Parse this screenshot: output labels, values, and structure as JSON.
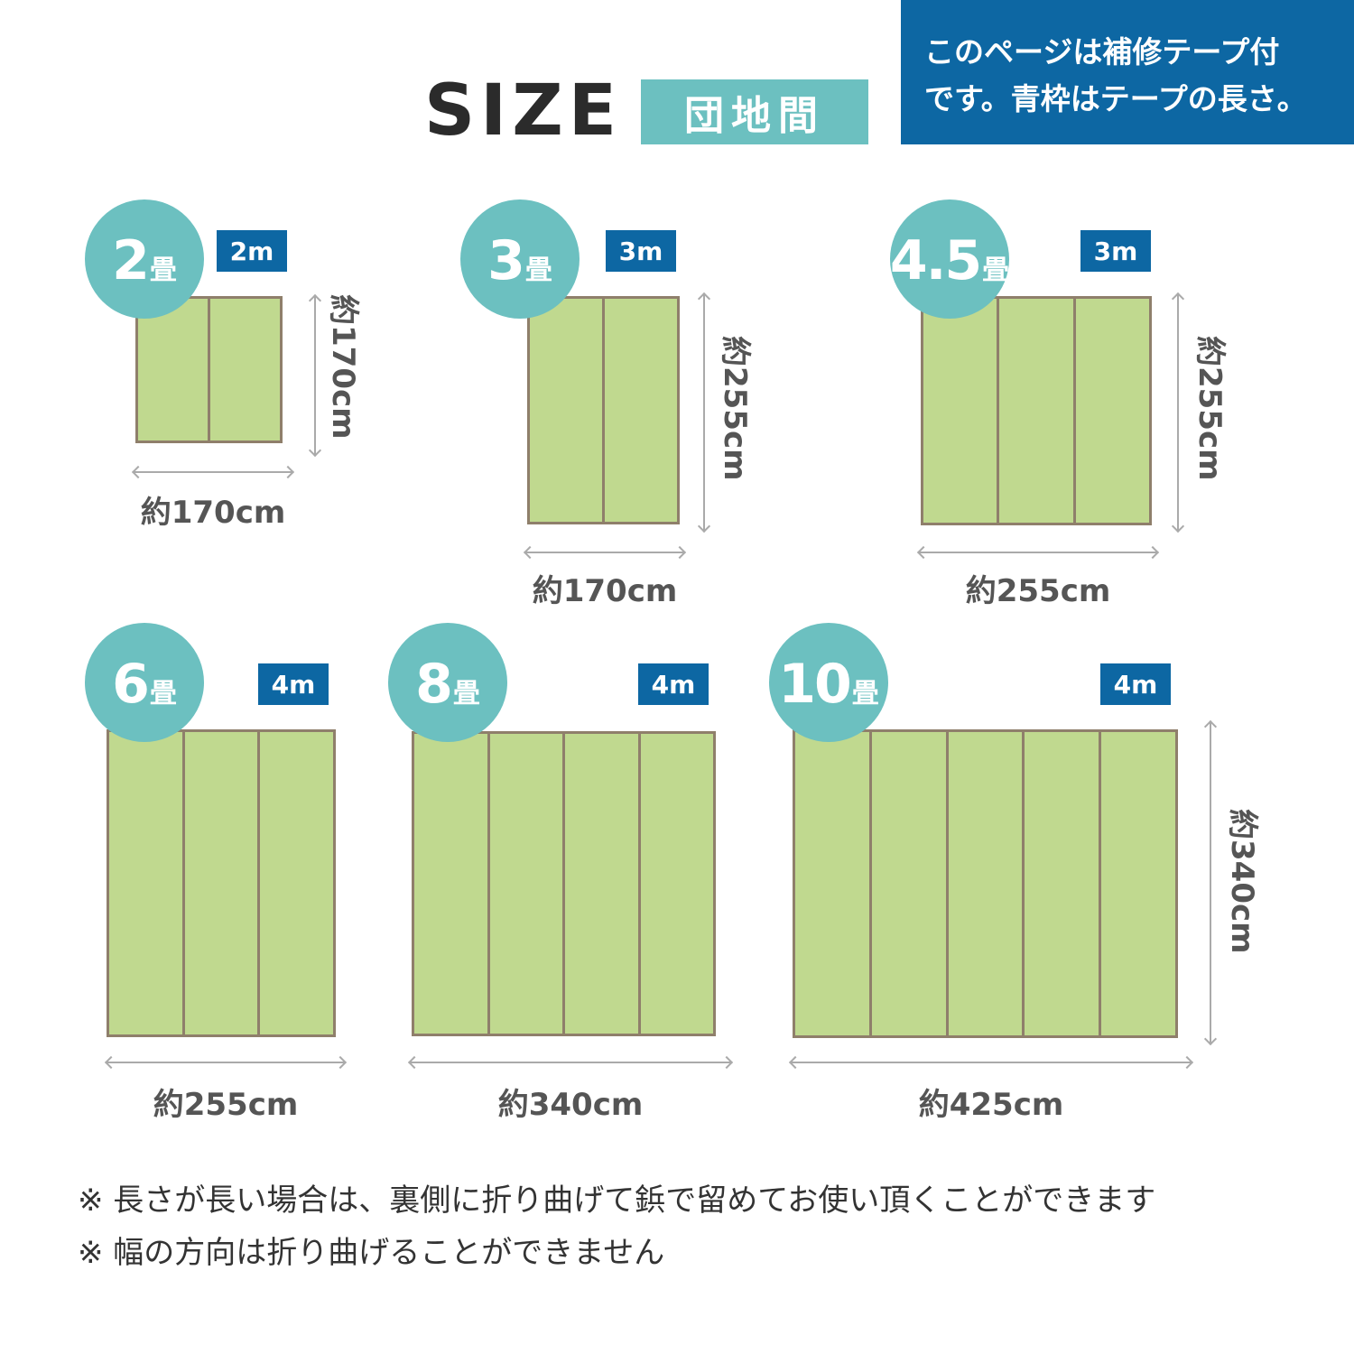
{
  "header": {
    "title": "SIZE",
    "badge": "団地間",
    "note_line1": "このページは補修テープ付",
    "note_line2": "です。青枠はテープの長さ。"
  },
  "colors": {
    "teal": "#6cc0c0",
    "navy": "#0d67a3",
    "mat_fill": "#c0d98f",
    "mat_border": "#8f7f6b"
  },
  "sizes": [
    {
      "num": "2",
      "unit": "畳",
      "panels": 2,
      "tape": "2m",
      "width": "約170cm",
      "height": "約170cm"
    },
    {
      "num": "3",
      "unit": "畳",
      "panels": 2,
      "tape": "3m",
      "width": "約170cm",
      "height": "約255cm"
    },
    {
      "num": "4.5",
      "unit": "畳",
      "panels": 3,
      "tape": "3m",
      "width": "約255cm",
      "height": "約255cm"
    },
    {
      "num": "6",
      "unit": "畳",
      "panels": 3,
      "tape": "4m",
      "width": "約255cm",
      "height": ""
    },
    {
      "num": "8",
      "unit": "畳",
      "panels": 4,
      "tape": "4m",
      "width": "約340cm",
      "height": ""
    },
    {
      "num": "10",
      "unit": "畳",
      "panels": 5,
      "tape": "4m",
      "width": "約425cm",
      "height": "約340cm"
    }
  ],
  "footnotes": [
    "※ 長さが長い場合は、裏側に折り曲げて鋲で留めてお使い頂くことができます",
    "※ 幅の方向は折り曲げることができません"
  ]
}
